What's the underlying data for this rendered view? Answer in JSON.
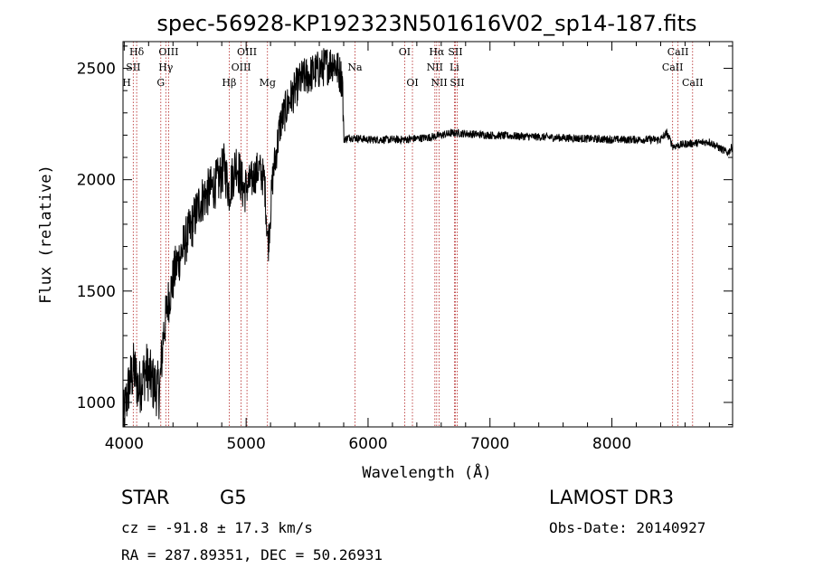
{
  "chart_data": {
    "type": "line",
    "title": "spec-56928-KP192323N501616V02_sp14-187.fits",
    "xlabel": "Wavelength (Å)",
    "ylabel": "Flux (relative)",
    "xlim": [
      3990,
      8990
    ],
    "ylim": [
      890,
      2620
    ],
    "xticks": [
      "4000",
      "5000",
      "6000",
      "7000",
      "8000"
    ],
    "yticks": [
      "1000",
      "1500",
      "2000",
      "2500"
    ],
    "spectrum_anchors": [
      [
        3990,
        900
      ],
      [
        4010,
        980
      ],
      [
        4040,
        1080
      ],
      [
        4080,
        1150
      ],
      [
        4120,
        1060
      ],
      [
        4180,
        1150
      ],
      [
        4240,
        1080
      ],
      [
        4290,
        1050
      ],
      [
        4320,
        1300
      ],
      [
        4360,
        1450
      ],
      [
        4420,
        1600
      ],
      [
        4500,
        1720
      ],
      [
        4560,
        1800
      ],
      [
        4620,
        1900
      ],
      [
        4700,
        1950
      ],
      [
        4780,
        2000
      ],
      [
        4820,
        2060
      ],
      [
        4860,
        1950
      ],
      [
        4920,
        2080
      ],
      [
        4980,
        1950
      ],
      [
        5050,
        2000
      ],
      [
        5100,
        2050
      ],
      [
        5150,
        2000
      ],
      [
        5180,
        1700
      ],
      [
        5220,
        2020
      ],
      [
        5280,
        2250
      ],
      [
        5350,
        2350
      ],
      [
        5450,
        2450
      ],
      [
        5550,
        2480
      ],
      [
        5650,
        2510
      ],
      [
        5720,
        2530
      ],
      [
        5790,
        2450
      ],
      [
        5800,
        2180
      ],
      [
        5850,
        2190
      ],
      [
        6000,
        2180
      ],
      [
        6300,
        2180
      ],
      [
        6500,
        2190
      ],
      [
        6700,
        2210
      ],
      [
        7000,
        2200
      ],
      [
        7500,
        2190
      ],
      [
        8000,
        2180
      ],
      [
        8400,
        2180
      ],
      [
        8450,
        2210
      ],
      [
        8500,
        2150
      ],
      [
        8600,
        2160
      ],
      [
        8800,
        2170
      ],
      [
        8950,
        2120
      ],
      [
        8990,
        2150
      ]
    ],
    "lines": [
      {
        "wavelength": 3970,
        "label": "H",
        "row": 3
      },
      {
        "wavelength": 4102,
        "label": "Hδ",
        "row": 1
      },
      {
        "wavelength": 4074,
        "label": "SII",
        "row": 2
      },
      {
        "wavelength": 4300,
        "label": "G",
        "row": 3
      },
      {
        "wavelength": 4341,
        "label": "Hγ",
        "row": 2
      },
      {
        "wavelength": 4364,
        "label": "OIII",
        "row": 1
      },
      {
        "wavelength": 4861,
        "label": "Hβ",
        "row": 3
      },
      {
        "wavelength": 4959,
        "label": "OIII",
        "row": 2
      },
      {
        "wavelength": 5007,
        "label": "OIII",
        "row": 1
      },
      {
        "wavelength": 5175,
        "label": "Mg",
        "row": 3
      },
      {
        "wavelength": 5893,
        "label": "Na",
        "row": 2
      },
      {
        "wavelength": 6300,
        "label": "OI",
        "row": 1
      },
      {
        "wavelength": 6364,
        "label": "OI",
        "row": 3
      },
      {
        "wavelength": 6548,
        "label": "NII",
        "row": 2
      },
      {
        "wavelength": 6563,
        "label": "Hα",
        "row": 1
      },
      {
        "wavelength": 6583,
        "label": "NII",
        "row": 3
      },
      {
        "wavelength": 6708,
        "label": "Li",
        "row": 2
      },
      {
        "wavelength": 6716,
        "label": "SII",
        "row": 1
      },
      {
        "wavelength": 6731,
        "label": "SII",
        "row": 3
      },
      {
        "wavelength": 8498,
        "label": "CaII",
        "row": 2
      },
      {
        "wavelength": 8542,
        "label": "CaII",
        "row": 1
      },
      {
        "wavelength": 8662,
        "label": "CaII",
        "row": 3
      }
    ],
    "colors": {
      "spectrum": "#000000",
      "line_markers": "#b22222"
    }
  },
  "info": {
    "object_class": "STAR",
    "subclass": "G5",
    "survey": "LAMOST DR3",
    "cz": "cz = -91.8 ± 17.3 km/s",
    "obs_date": "Obs-Date: 20140927",
    "coords": "RA = 287.89351, DEC =  50.26931"
  }
}
